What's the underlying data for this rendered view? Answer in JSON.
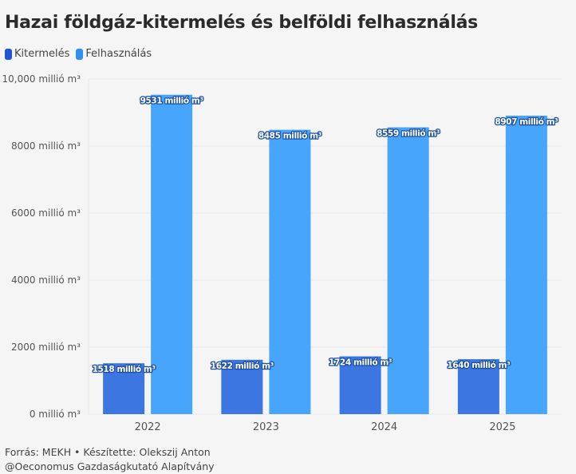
{
  "colors": {
    "Kitermelés": "#3b76e1",
    "Felhasználás": "#47a5fb",
    "Kitermelés_legend": "#1e55d6",
    "Felhasználás_legend": "#2e90f7"
  },
  "footer": {
    "line1": "Forrás: MEKH • Készítette: Olekszij Anton",
    "line2": "@Oeconomus Gazdaságkutató Alapítvány"
  },
  "chart_data": {
    "type": "bar",
    "title": "Hazai földgáz-kitermelés és belföldi felhasználás",
    "xlabel": "",
    "ylabel": "",
    "categories": [
      "2022",
      "2023",
      "2024",
      "2025"
    ],
    "series": [
      {
        "name": "Kitermelés",
        "values": [
          1518,
          1622,
          1724,
          1640
        ]
      },
      {
        "name": "Felhasználás",
        "values": [
          9531,
          8485,
          8559,
          8907
        ]
      }
    ],
    "unit_label": "millió m³",
    "ylim": [
      0,
      10000
    ],
    "yticks": [
      0,
      2000,
      4000,
      6000,
      8000,
      10000
    ],
    "ytick_labels": [
      "0 millió m³",
      "2000 millió m³",
      "4000 millió m³",
      "6000 millió m³",
      "8000 millió m³",
      "10,000 millió m³"
    ],
    "data_labels": [
      [
        "1518 millió m³",
        "1622 millió m³",
        "1724 millió m³",
        "1640 millió m³"
      ],
      [
        "9531 millió m³",
        "8485 millió m³",
        "8559 millió m³",
        "8907 millió m³"
      ]
    ],
    "grid": true,
    "legend_position": "top-left"
  }
}
